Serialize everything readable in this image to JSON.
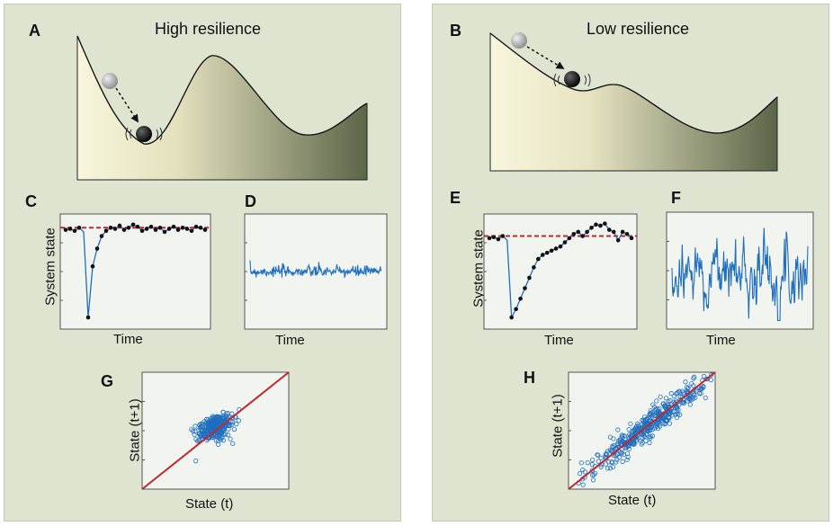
{
  "panels": {
    "A": {
      "letter": "A",
      "title": "High resilience"
    },
    "B": {
      "letter": "B",
      "title": "Low resilience"
    },
    "C": {
      "letter": "C",
      "ylabel": "System state",
      "xlabel": "Time"
    },
    "D": {
      "letter": "D",
      "xlabel": "Time"
    },
    "E": {
      "letter": "E",
      "ylabel": "System state",
      "xlabel": "Time"
    },
    "F": {
      "letter": "F",
      "xlabel": "Time"
    },
    "G": {
      "letter": "G",
      "xlabel": "State (t)",
      "ylabel": "State (t+1)"
    },
    "H": {
      "letter": "H",
      "xlabel": "State (t)",
      "ylabel": "State (t+1)"
    }
  },
  "colors": {
    "panel_bg": "#dfe4d1",
    "plot_bg": "#f2f4ef",
    "series": "#1f6fbf",
    "reference": "#c0272d",
    "landscape_light": "#f7f4d7",
    "landscape_dark": "#5b6548"
  },
  "chart_data": [
    {
      "id": "C",
      "type": "line",
      "series": [
        {
          "values": [
            0.9,
            0.91,
            0.89,
            0.92,
            0.88,
            0.06,
            0.55,
            0.72,
            0.84,
            0.89,
            0.92,
            0.91,
            0.94,
            0.9,
            0.92,
            0.95,
            0.93,
            0.89,
            0.91,
            0.93,
            0.9,
            0.92,
            0.88,
            0.91,
            0.93,
            0.9,
            0.92,
            0.91,
            0.89,
            0.93,
            0.92,
            0.9
          ]
        }
      ],
      "reference": 0.92,
      "ylim": [
        0,
        1
      ]
    },
    {
      "id": "D",
      "type": "line",
      "kind": "noise",
      "mean": 0.5,
      "spread": 0.05,
      "n": 240,
      "ylim": [
        0,
        1
      ]
    },
    {
      "id": "E",
      "type": "line",
      "series": [
        {
          "values": [
            0.82,
            0.83,
            0.81,
            0.84,
            0.8,
            0.06,
            0.14,
            0.24,
            0.34,
            0.44,
            0.54,
            0.62,
            0.66,
            0.68,
            0.7,
            0.72,
            0.74,
            0.78,
            0.82,
            0.86,
            0.88,
            0.84,
            0.88,
            0.92,
            0.95,
            0.94,
            0.96,
            0.9,
            0.88,
            0.8,
            0.88,
            0.86,
            0.82
          ]
        }
      ],
      "reference": 0.84,
      "ylim": [
        0,
        1
      ]
    },
    {
      "id": "F",
      "type": "line",
      "kind": "noise",
      "mean": 0.5,
      "spread": 0.28,
      "n": 240,
      "ylim": [
        0,
        1
      ]
    },
    {
      "id": "G",
      "type": "scatter",
      "cloud": {
        "cx": 0.5,
        "cy": 0.53,
        "spread_major": 0.07,
        "spread_minor": 0.045,
        "n": 320
      },
      "reference_line": "y=x",
      "xlim": [
        0,
        1
      ],
      "ylim": [
        0,
        1
      ]
    },
    {
      "id": "H",
      "type": "scatter",
      "cloud": {
        "cx": 0.55,
        "cy": 0.55,
        "spread_major": 0.28,
        "spread_minor": 0.04,
        "n": 420
      },
      "reference_line": "y=x",
      "xlim": [
        0,
        1
      ],
      "ylim": [
        0,
        1
      ]
    }
  ]
}
